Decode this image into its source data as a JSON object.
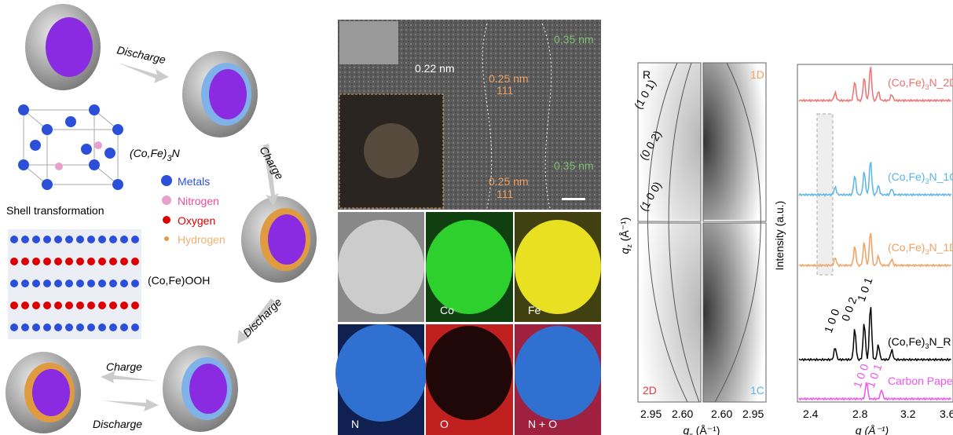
{
  "schematic": {
    "steps": [
      "Discharge",
      "Charge",
      "Discharge",
      "Charge",
      "Discharge"
    ],
    "nitride": {
      "pre": "(Co,Fe)",
      "sub": "3",
      "post": "N"
    },
    "legend": [
      "Metals",
      "Nitrogen",
      "Oxygen",
      "Hydrogen"
    ],
    "shell_transformation": "Shell transformation",
    "oxyhydroxide": "(Co,Fe)OOH"
  },
  "tem": {
    "spacings": [
      "0.22 nm",
      "0.25 nm",
      "0.35 nm",
      "0.25 nm",
      "0.35 nm"
    ],
    "planes": [
      "111",
      "111"
    ],
    "maps": [
      "Co",
      "Fe",
      "N",
      "O",
      "N + O"
    ]
  },
  "waxs": {
    "ylabel": {
      "pre": "q",
      "sub": "z",
      "post": " (Å⁻¹)"
    },
    "xlabel": {
      "pre": "q",
      "sub": "x",
      "post": " (Å⁻¹)"
    },
    "quadrants": [
      "R",
      "1D",
      "2D",
      "1C"
    ],
    "rings": [
      "(1 0 1)",
      "(0 0 2)",
      "(1 0 0)"
    ],
    "xticks": [
      "2.95",
      "2.60",
      "2.60",
      "2.95"
    ]
  },
  "xrd": {
    "ylabel": "Intensity (a.u.)",
    "xlabel": "q (Å⁻¹)",
    "xticks": [
      "2.4",
      "2.8",
      "3.2",
      "3.6"
    ],
    "traces": [
      {
        "pre": "(Co,Fe)",
        "sub": "3",
        "post": "N_2D"
      },
      {
        "pre": "(Co,Fe)",
        "sub": "3",
        "post": "N_1C"
      },
      {
        "pre": "(Co,Fe)",
        "sub": "3",
        "post": "N_1D"
      },
      {
        "pre": "(Co,Fe)",
        "sub": "3",
        "post": "N_R"
      },
      {
        "pre": "",
        "sub": "",
        "post": "Carbon Paper"
      }
    ],
    "peaks": [
      "1 0 0",
      "0 0 2",
      "1 0 1"
    ],
    "carbon_peaks": [
      "1 0 0",
      "1 0 1"
    ]
  }
}
